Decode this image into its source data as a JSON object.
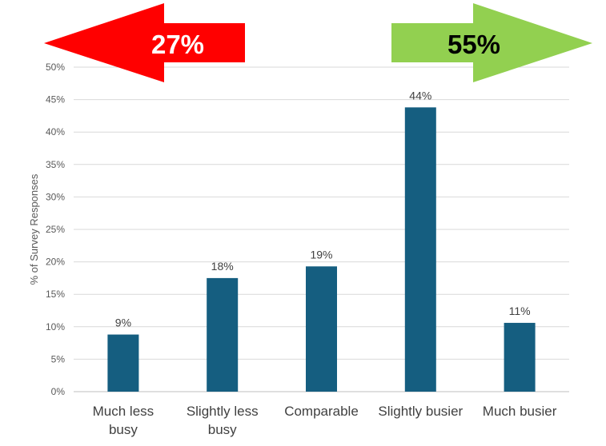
{
  "chart_data": {
    "type": "bar",
    "categories": [
      [
        "Much less",
        "busy"
      ],
      [
        "Slightly less",
        "busy"
      ],
      [
        "Comparable"
      ],
      [
        "Slightly busier"
      ],
      [
        "Much busier"
      ]
    ],
    "values": [
      8.8,
      17.5,
      19.3,
      43.8,
      10.6
    ],
    "data_labels": [
      "9%",
      "18%",
      "19%",
      "44%",
      "11%"
    ],
    "ylabel": "% of Survey Responses",
    "ylim": [
      0,
      50
    ],
    "yticks": [
      0,
      5,
      10,
      15,
      20,
      25,
      30,
      35,
      40,
      45,
      50
    ],
    "ytick_labels": [
      "0%",
      "5%",
      "10%",
      "15%",
      "20%",
      "25%",
      "30%",
      "35%",
      "40%",
      "45%",
      "50%"
    ],
    "grid": true,
    "bar_color": "#155e80",
    "annotations": [
      {
        "name": "less-busy-arrow",
        "text": "27%",
        "direction": "left",
        "color": "#ff0000",
        "text_color": "#ffffff"
      },
      {
        "name": "more-busy-arrow",
        "text": "55%",
        "direction": "right",
        "color": "#92d050",
        "text_color": "#000000"
      }
    ]
  }
}
